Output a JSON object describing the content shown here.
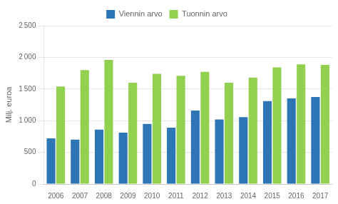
{
  "chart_data": {
    "type": "bar",
    "ylabel": "Milj. euroa",
    "categories": [
      "2006",
      "2007",
      "2008",
      "2009",
      "2010",
      "2011",
      "2012",
      "2013",
      "2014",
      "2015",
      "2016",
      "2017"
    ],
    "series": [
      {
        "name": "Viennin arvo",
        "color": "#2e75b6",
        "values": [
          720,
          700,
          860,
          810,
          950,
          890,
          1160,
          1020,
          1055,
          1310,
          1350,
          1375
        ]
      },
      {
        "name": "Tuonnin arvo",
        "color": "#92d050",
        "values": [
          1540,
          1800,
          1960,
          1600,
          1740,
          1710,
          1770,
          1600,
          1680,
          1840,
          1890,
          1880
        ]
      }
    ],
    "ylim": [
      0,
      2500
    ],
    "yticks": [
      0,
      500,
      {
        "value": 1000,
        "label": "1 000"
      },
      {
        "value": 1500,
        "label": "1 500"
      },
      {
        "value": 2000,
        "label": "2 000"
      },
      {
        "value": 2500,
        "label": "2 500"
      }
    ],
    "grid": true,
    "legend": "top"
  }
}
